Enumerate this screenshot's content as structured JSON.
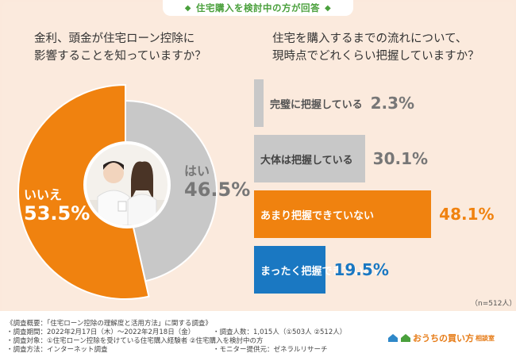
{
  "header": "住宅購入を検討中の方が回答",
  "question_left": [
    "金利、頭金が住宅ローン控除に",
    "影響することを知っていますか？"
  ],
  "question_right": [
    "住宅を購入するまでの流れについて、",
    "現時点でどれくらい把握していますか？"
  ],
  "colors": {
    "orange": "#f0820f",
    "gray": "#c8c8c8",
    "blue": "#1a78c2",
    "green": "#4aa03c"
  },
  "chart_data": [
    {
      "type": "pie",
      "title": "金利、頭金が住宅ローン控除に影響することを知っていますか？",
      "slices": [
        {
          "name": "はい",
          "value": 46.5,
          "value_text": "46.5%",
          "color": "#c8c8c8"
        },
        {
          "name": "いいえ",
          "value": 53.5,
          "value_text": "53.5%",
          "color": "#f0820f"
        }
      ]
    },
    {
      "type": "bar",
      "title": "住宅を購入するまでの流れについて、現時点でどれくらい把握していますか？",
      "categories": [
        "完璧に把握している",
        "大体は把握している",
        "あまり把握できていない",
        "まったく把握できていない"
      ],
      "values": [
        2.3,
        30.1,
        48.1,
        19.5
      ],
      "value_text": [
        "2.3%",
        "30.1%",
        "48.1%",
        "19.5%"
      ],
      "colors": [
        "#c8c8c8",
        "#c8c8c8",
        "#f0820f",
        "#1a78c2"
      ],
      "label_colors": [
        "#555555",
        "#444444",
        "#ffffff",
        "#ffffff"
      ],
      "value_colors": [
        "#777777",
        "#777777",
        "#f0820f",
        "#1a78c2"
      ],
      "xlim": [
        0,
        50
      ],
      "n_note": "（n=512人）"
    }
  ],
  "footer": {
    "left": [
      "《調査概要：「住宅ローン控除の理解度と活用方法」に関する調査》",
      "・調査期間：2022年2月17日（木）～2022年2月18日（金）",
      "・調査対象：①住宅ローン控除を受けている住宅購入経験者 ②住宅購入を検討中の方",
      "・調査方法：インターネット調査"
    ],
    "right": [
      "・調査人数：1,015人（①503人 ②512人）",
      "・モニター提供元：ゼネラルリサーチ"
    ],
    "logo_main": "おうちの買い方",
    "logo_sub": "相談室"
  }
}
